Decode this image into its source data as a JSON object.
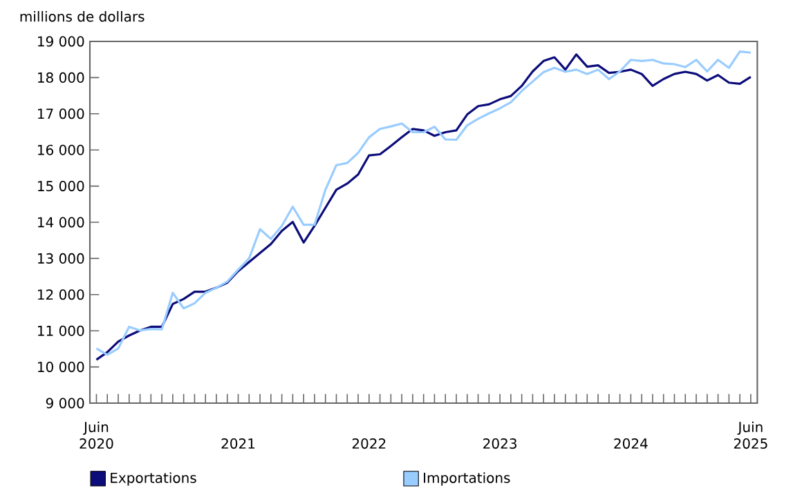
{
  "chart_data": {
    "type": "line",
    "ylabel": "millions de dollars",
    "categories": [
      "Juin 2020",
      null,
      null,
      null,
      null,
      null,
      null,
      null,
      null,
      null,
      null,
      null,
      null,
      "2021",
      null,
      null,
      null,
      null,
      null,
      null,
      null,
      null,
      null,
      null,
      null,
      "2022",
      null,
      null,
      null,
      null,
      null,
      null,
      null,
      null,
      null,
      null,
      null,
      "2023",
      null,
      null,
      null,
      null,
      null,
      null,
      null,
      null,
      null,
      null,
      null,
      "2024",
      null,
      null,
      null,
      null,
      null,
      null,
      null,
      null,
      null,
      null,
      "Juin 2025"
    ],
    "series": [
      {
        "name": "Exportations",
        "color": "#0c0c7a",
        "values": [
          10200,
          10410,
          10700,
          10870,
          11010,
          11110,
          11110,
          11740,
          11880,
          12080,
          12080,
          12190,
          12330,
          12650,
          12900,
          13150,
          13400,
          13760,
          14010,
          13440,
          13900,
          14400,
          14900,
          15070,
          15320,
          15850,
          15880,
          16110,
          16350,
          16580,
          16540,
          16390,
          16490,
          16540,
          16980,
          17210,
          17260,
          17400,
          17490,
          17770,
          18170,
          18460,
          18560,
          18220,
          18640,
          18300,
          18340,
          18130,
          18160,
          18220,
          18100,
          17770,
          17960,
          18100,
          18160,
          18100,
          17920,
          18070,
          17860,
          17830,
          18020
        ]
      },
      {
        "name": "Importations",
        "color": "#99ccff",
        "values": [
          10510,
          10340,
          10510,
          11110,
          11010,
          11050,
          11040,
          12050,
          11620,
          11760,
          12050,
          12190,
          12360,
          12690,
          13000,
          13810,
          13540,
          13900,
          14430,
          13930,
          13930,
          14900,
          15580,
          15640,
          15920,
          16350,
          16580,
          16650,
          16730,
          16490,
          16490,
          16640,
          16290,
          16280,
          16680,
          16860,
          17010,
          17150,
          17320,
          17630,
          17890,
          18150,
          18270,
          18160,
          18220,
          18100,
          18220,
          17960,
          18170,
          18490,
          18460,
          18490,
          18390,
          18370,
          18290,
          18490,
          18170,
          18490,
          18270,
          18720,
          18690
        ]
      }
    ],
    "ylim": [
      9000,
      19000
    ],
    "yticks": [
      {
        "value": 9000,
        "label": "9 000"
      },
      {
        "value": 10000,
        "label": "10 000"
      },
      {
        "value": 11000,
        "label": "11 000"
      },
      {
        "value": 12000,
        "label": "12 000"
      },
      {
        "value": 13000,
        "label": "13 000"
      },
      {
        "value": 14000,
        "label": "14 000"
      },
      {
        "value": 15000,
        "label": "15 000"
      },
      {
        "value": 16000,
        "label": "16 000"
      },
      {
        "value": 17000,
        "label": "17 000"
      },
      {
        "value": 18000,
        "label": "18 000"
      },
      {
        "value": 19000,
        "label": "19 000"
      }
    ],
    "legend": "bottom"
  }
}
